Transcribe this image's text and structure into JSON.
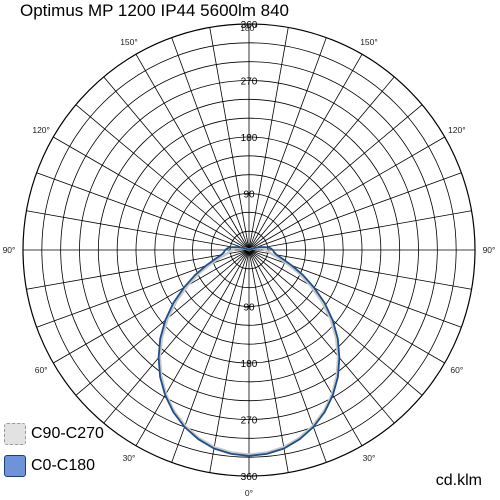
{
  "chart_data": {
    "type": "polar",
    "title": "Optimus MP 1200 IP44 5600lm 840",
    "unit_label": "cd.klm",
    "radial_axis": {
      "min": 0,
      "max": 360,
      "tick_labels": [
        "90",
        "180",
        "270",
        "360"
      ]
    },
    "angle_labels": [
      "180°",
      "150°",
      "120°",
      "90°",
      "60°",
      "30°",
      "0°",
      "30°",
      "60°",
      "90°",
      "120°",
      "150°"
    ],
    "series": [
      {
        "name": "C90-C270",
        "color": "#c8c8c8",
        "angles_deg": [
          0,
          5,
          10,
          15,
          20,
          25,
          30,
          35,
          40,
          45,
          50,
          55,
          60,
          65,
          70,
          75,
          80,
          85,
          90,
          95,
          100,
          105,
          110,
          115,
          120
        ],
        "values": [
          326,
          324,
          319,
          310,
          298,
          283,
          265,
          244,
          221,
          196,
          169,
          141,
          113,
          88,
          66,
          49,
          37,
          30,
          27,
          24,
          19,
          13,
          8,
          4,
          0
        ]
      },
      {
        "name": "C0-C180",
        "color": "#1f4e8c",
        "angles_deg": [
          0,
          5,
          10,
          15,
          20,
          25,
          30,
          35,
          40,
          45,
          50,
          55,
          60,
          65,
          70,
          75,
          80,
          85,
          90,
          95,
          100,
          105,
          110,
          115,
          120
        ],
        "values": [
          328,
          326,
          321,
          312,
          300,
          285,
          267,
          247,
          224,
          200,
          174,
          147,
          120,
          95,
          73,
          56,
          45,
          40,
          38,
          34,
          27,
          18,
          10,
          4,
          0
        ]
      }
    ],
    "legend_position": "bottom-left",
    "grid": true
  }
}
